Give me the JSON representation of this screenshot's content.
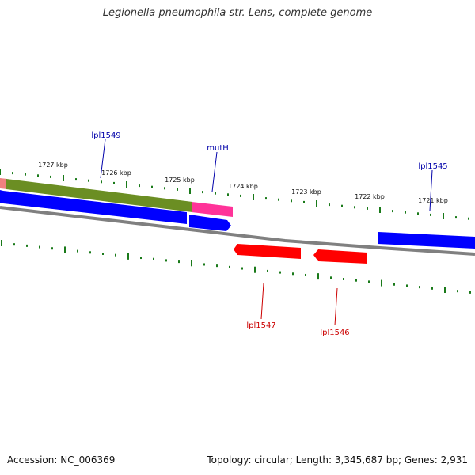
{
  "title": "Legionella pneumophila str. Lens, complete genome",
  "footer": {
    "accession": "Accession: NC_006369",
    "summary": "Topology: circular; Length: 3,345,687 bp; Genes: 2,931"
  },
  "scale_labels": [
    "1727 kbp",
    "1726 kbp",
    "1725 kbp",
    "1724 kbp",
    "1723 kbp",
    "1722 kbp",
    "1721 kbp"
  ],
  "features": [
    {
      "label": "lpl1549",
      "strand": "forward"
    },
    {
      "label": "mutH",
      "strand": "forward"
    },
    {
      "label": "lpl1545",
      "strand": "forward"
    },
    {
      "label": "lpl1547",
      "strand": "reverse"
    },
    {
      "label": "lpl1546",
      "strand": "reverse"
    }
  ],
  "colors": {
    "forward_gene": "#0000ff",
    "reverse_gene": "#ff0000",
    "forward_label": "#0000aa",
    "reverse_label": "#cc0000",
    "backbone": "#808080",
    "tick": "#1a7a1a",
    "operon_green": "#6b8e23",
    "operon_pink": "#ff3399",
    "operon_salmon": "#f08080"
  }
}
